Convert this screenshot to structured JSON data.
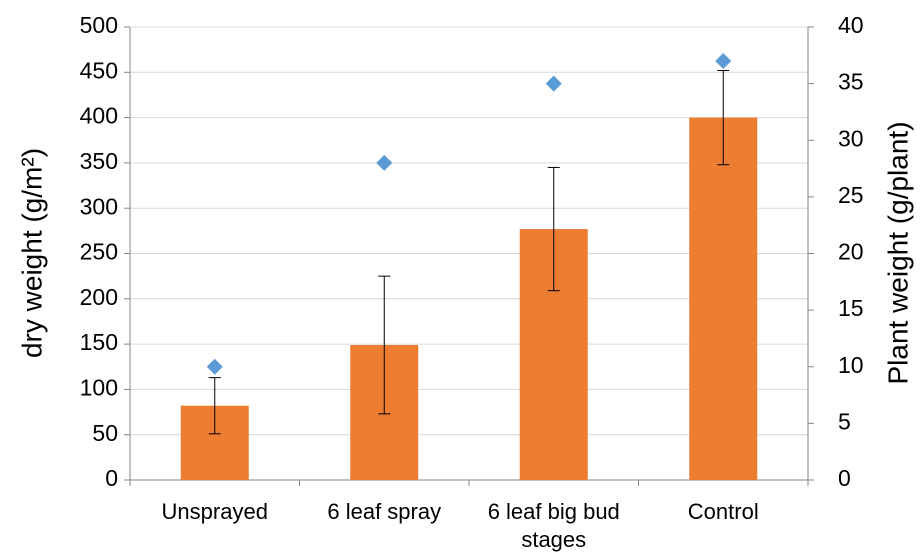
{
  "chart_data": {
    "type": "bar",
    "categories": [
      "Unsprayed",
      "6 leaf spray",
      "6 leaf big bud stages",
      "Control"
    ],
    "series": [
      {
        "color": "#ed7d31",
        "values": [
          82,
          149,
          277,
          400
        ],
        "errors": [
          31,
          76,
          68,
          52
        ]
      },
      {
        "type": "scatter",
        "marker": "diamond",
        "color": "#5b9bd5",
        "axis": "y2",
        "values": [
          10,
          28,
          35,
          37
        ]
      }
    ],
    "ylabel": "dry weight (g/m²)",
    "y2label": "Plant weight (g/plant)",
    "ylim": [
      0,
      500
    ],
    "yticks": [
      0,
      50,
      100,
      150,
      200,
      250,
      300,
      350,
      400,
      450,
      500
    ],
    "y2lim": [
      0,
      40
    ],
    "y2ticks": [
      0,
      5,
      10,
      15,
      20,
      25,
      30,
      35,
      40
    ],
    "grid": true
  }
}
